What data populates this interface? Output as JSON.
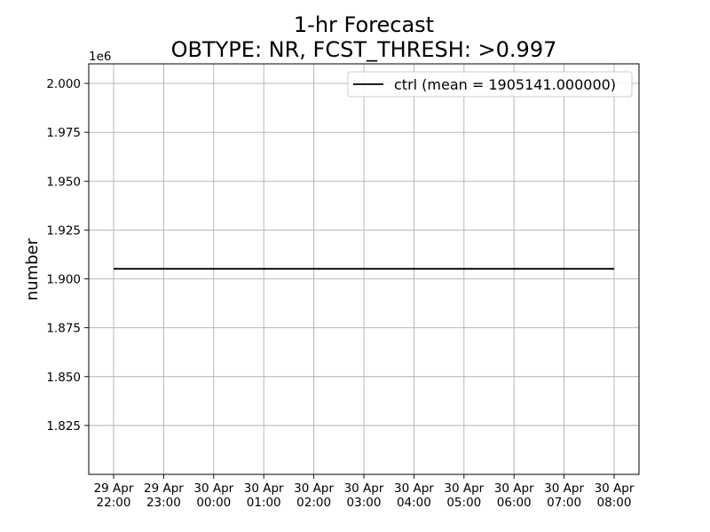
{
  "chart_data": {
    "type": "line",
    "title_line1": "1-hr Forecast",
    "title_line2": "OBTYPE: NR,  FCST_THRESH: >0.997",
    "xlabel": "",
    "ylabel": "number",
    "y_offset_label": "1e6",
    "y_scale": 1000000,
    "ylim": [
      1800000,
      2010000
    ],
    "y_ticks": [
      1825000,
      1850000,
      1875000,
      1900000,
      1925000,
      1950000,
      1975000,
      2000000
    ],
    "y_tick_labels": [
      "1.825",
      "1.850",
      "1.875",
      "1.900",
      "1.925",
      "1.950",
      "1.975",
      "2.000"
    ],
    "x": [
      [
        "29 Apr",
        "22:00"
      ],
      [
        "29 Apr",
        "23:00"
      ],
      [
        "30 Apr",
        "00:00"
      ],
      [
        "30 Apr",
        "01:00"
      ],
      [
        "30 Apr",
        "02:00"
      ],
      [
        "30 Apr",
        "03:00"
      ],
      [
        "30 Apr",
        "04:00"
      ],
      [
        "30 Apr",
        "05:00"
      ],
      [
        "30 Apr",
        "06:00"
      ],
      [
        "30 Apr",
        "07:00"
      ],
      [
        "30 Apr",
        "08:00"
      ]
    ],
    "grid": true,
    "legend_placement": "top-right",
    "series": [
      {
        "name": "ctrl (mean = 1905141.000000)",
        "color": "#000000",
        "values": [
          1905141,
          1905141,
          1905141,
          1905141,
          1905141,
          1905141,
          1905141,
          1905141,
          1905141,
          1905141,
          1905141
        ]
      }
    ]
  }
}
